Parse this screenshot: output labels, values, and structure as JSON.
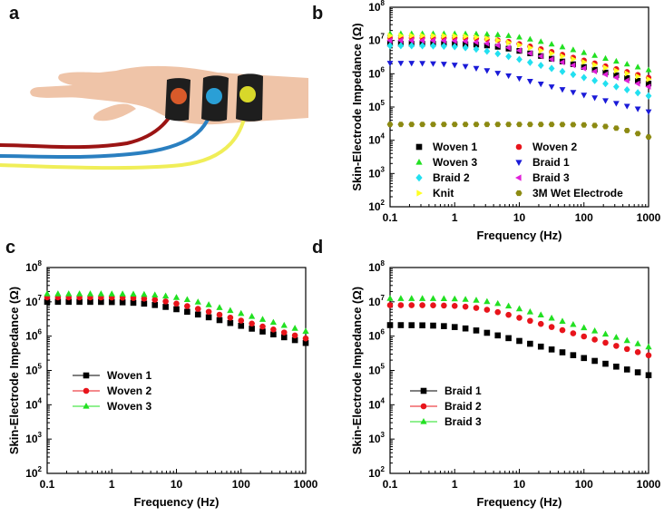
{
  "figure": {
    "panel_labels": [
      "a",
      "b",
      "c",
      "d"
    ]
  },
  "illustration": {
    "description_name": "wrist-with-textile-electrodes",
    "colors": {
      "skin": "#efc4a8",
      "band": "#1e1e1e",
      "electrode_1": "#d85a2a",
      "electrode_2": "#2a9fd6",
      "electrode_3": "#d8d82a",
      "wire_1": "#9b1414",
      "wire_2": "#2a7fc0",
      "wire_3": "#f0ee58"
    }
  },
  "chart_data": [
    {
      "panel": "b",
      "type": "scatter",
      "xscale": "log",
      "yscale": "log",
      "xlim": [
        0.1,
        1000
      ],
      "ylim_exp": [
        2,
        8
      ],
      "xticks": [
        "0.1",
        "1",
        "10",
        "100",
        "1000"
      ],
      "ytick_exps": [
        "2",
        "3",
        "4",
        "5",
        "6",
        "7",
        "8"
      ],
      "ytick_base": "10",
      "xlabel": "Frequency (Hz)",
      "ylabel": "Skin-Electrode Impedance (Ω)",
      "legend_position": "bottom-center",
      "legend_columns": 2,
      "series": [
        {
          "name": "Woven 1",
          "marker": "square",
          "color": "#000000",
          "low": 8000000.0,
          "fc": 4,
          "n": 0.5
        },
        {
          "name": "Woven 2",
          "marker": "circle",
          "color": "#e8141b",
          "low": 12000000.0,
          "fc": 5,
          "n": 0.52
        },
        {
          "name": "Woven 3",
          "marker": "triangle-up",
          "color": "#22e022",
          "low": 16000000.0,
          "fc": 8,
          "n": 0.52
        },
        {
          "name": "Braid 1",
          "marker": "triangle-down",
          "color": "#1a1ad8",
          "low": 2100000.0,
          "fc": 1.2,
          "n": 0.5
        },
        {
          "name": "Braid 2",
          "marker": "diamond",
          "color": "#22e0f0",
          "low": 7000000.0,
          "fc": 1.8,
          "n": 0.55
        },
        {
          "name": "Braid 3",
          "marker": "triangle-left",
          "color": "#e020d8",
          "low": 10000000.0,
          "fc": 3,
          "n": 0.55
        },
        {
          "name": "Knit",
          "marker": "triangle-right",
          "color": "#ffff22",
          "low": 14000000.0,
          "fc": 3,
          "n": 0.52
        },
        {
          "name": "3M Wet Electrode",
          "marker": "hexagon",
          "color": "#8c8a12",
          "low": 30000.0,
          "fc": 300,
          "n": 0.7
        }
      ]
    },
    {
      "panel": "c",
      "type": "scatter",
      "xscale": "log",
      "yscale": "log",
      "xlim": [
        0.1,
        1000
      ],
      "ylim_exp": [
        2,
        8
      ],
      "xticks": [
        "0.1",
        "1",
        "10",
        "100",
        "1000"
      ],
      "ytick_exps": [
        "2",
        "3",
        "4",
        "5",
        "6",
        "7",
        "8"
      ],
      "ytick_base": "10",
      "xlabel": "Frequency (Hz)",
      "ylabel": "Skin-Electrode Impedance (Ω)",
      "legend_position": "center-left",
      "legend_columns": 1,
      "series": [
        {
          "name": "Woven 1",
          "marker": "square",
          "color": "#000000",
          "low": 10000000.0,
          "fc": 4,
          "n": 0.5
        },
        {
          "name": "Woven 2",
          "marker": "circle",
          "color": "#e8141b",
          "low": 13500000.0,
          "fc": 5,
          "n": 0.52
        },
        {
          "name": "Woven 3",
          "marker": "triangle-up",
          "color": "#22e022",
          "low": 17000000.0,
          "fc": 8,
          "n": 0.52
        }
      ]
    },
    {
      "panel": "d",
      "type": "scatter",
      "xscale": "log",
      "yscale": "log",
      "xlim": [
        0.1,
        1000
      ],
      "ylim_exp": [
        2,
        8
      ],
      "xticks": [
        "0.1",
        "1",
        "10",
        "100",
        "1000"
      ],
      "ytick_exps": [
        "2",
        "3",
        "4",
        "5",
        "6",
        "7",
        "8"
      ],
      "ytick_base": "10",
      "xlabel": "Frequency (Hz)",
      "ylabel": "Skin-Electrode Impedance (Ω)",
      "legend_position": "center-left",
      "legend_columns": 1,
      "series": [
        {
          "name": "Braid 1",
          "marker": "square",
          "color": "#000000",
          "low": 2100000.0,
          "fc": 1.2,
          "n": 0.5
        },
        {
          "name": "Braid 2",
          "marker": "circle",
          "color": "#e8141b",
          "low": 8000000.0,
          "fc": 2.2,
          "n": 0.55
        },
        {
          "name": "Braid 3",
          "marker": "triangle-up",
          "color": "#22e022",
          "low": 12500000.0,
          "fc": 3,
          "n": 0.56
        }
      ]
    }
  ]
}
